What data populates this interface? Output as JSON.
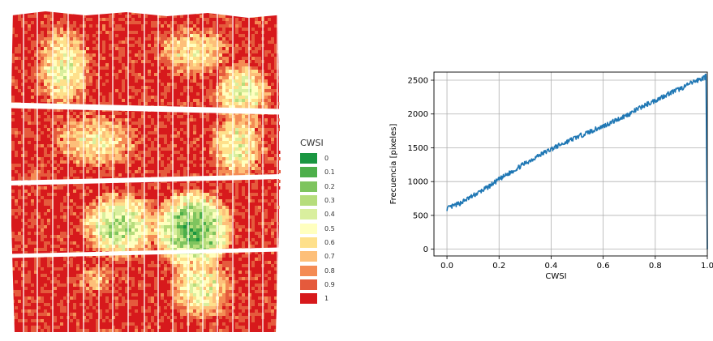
{
  "map": {
    "legend_title": "CWSI",
    "legend": [
      {
        "label": "0",
        "color": "#1a9641"
      },
      {
        "label": "0.1",
        "color": "#4daf4a"
      },
      {
        "label": "0.2",
        "color": "#7ec45e"
      },
      {
        "label": "0.3",
        "color": "#b6dd7c"
      },
      {
        "label": "0.4",
        "color": "#d9ef9e"
      },
      {
        "label": "0.5",
        "color": "#ffffbf"
      },
      {
        "label": "0.6",
        "color": "#fee08b"
      },
      {
        "label": "0.7",
        "color": "#fdbf79"
      },
      {
        "label": "0.8",
        "color": "#f48b54"
      },
      {
        "label": "0.9",
        "color": "#e55a3c"
      },
      {
        "label": "1",
        "color": "#d7191c"
      }
    ]
  },
  "chart_data": {
    "type": "line",
    "title": "",
    "xlabel": "CWSI",
    "ylabel": "Frecuencia [pixeles]",
    "xlim": [
      -0.05,
      1.0
    ],
    "ylim": [
      -100,
      2620
    ],
    "x_ticks": [
      "0.0",
      "0.2",
      "0.4",
      "0.6",
      "0.8",
      "1.0"
    ],
    "y_ticks": [
      "0",
      "500",
      "1000",
      "1500",
      "2000",
      "2500"
    ],
    "grid": true,
    "series": [
      {
        "color": "#1f77b4",
        "x": [
          0.0,
          0.05,
          0.1,
          0.15,
          0.2,
          0.25,
          0.3,
          0.35,
          0.4,
          0.45,
          0.5,
          0.55,
          0.6,
          0.65,
          0.7,
          0.75,
          0.8,
          0.85,
          0.9,
          0.95,
          0.99,
          0.995,
          1.0
        ],
        "values": [
          600,
          680,
          790,
          900,
          1030,
          1150,
          1270,
          1380,
          1480,
          1570,
          1660,
          1740,
          1820,
          1910,
          2000,
          2110,
          2200,
          2300,
          2380,
          2480,
          2540,
          2560,
          0
        ]
      }
    ]
  }
}
